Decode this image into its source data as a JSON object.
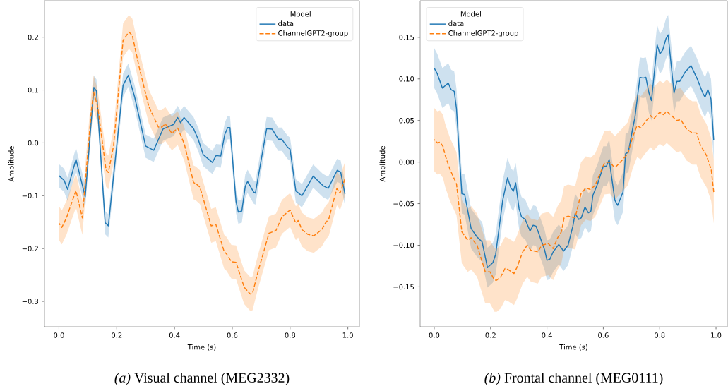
{
  "chart_data": [
    {
      "type": "line",
      "xlabel": "Time (s)",
      "ylabel": "Amplitude",
      "legend_title": "Model",
      "legend": "top right",
      "annotations": [
        "*(a)* Visual channel (MEG2332)"
      ],
      "xlim": [
        -0.05,
        1.04
      ],
      "ylim": [
        -0.348,
        0.269
      ],
      "xticks": [
        {
          "value": 0,
          "label": "0.0"
        },
        {
          "value": 0.2,
          "label": "0.2"
        },
        {
          "value": 0.4,
          "label": "0.4"
        },
        {
          "value": 0.6,
          "label": "0.6"
        },
        {
          "value": 0.8,
          "label": "0.8"
        },
        {
          "value": 1,
          "label": "1.0"
        }
      ],
      "yticks": [
        {
          "value": -0.3,
          "label": "−0.3"
        },
        {
          "value": -0.2,
          "label": "−0.2"
        },
        {
          "value": -0.1,
          "label": "−0.1"
        },
        {
          "value": 0,
          "label": "0.0"
        },
        {
          "value": 0.1,
          "label": "0.1"
        },
        {
          "value": 0.2,
          "label": "0.2"
        }
      ],
      "series": [
        {
          "name": "data",
          "color": "#1f77b4",
          "line_style": "solid",
          "x": [
            0,
            0.018,
            0.03,
            0.059,
            0.091,
            0.121,
            0.13,
            0.16,
            0.171,
            0.222,
            0.24,
            0.262,
            0.3,
            0.328,
            0.36,
            0.397,
            0.411,
            0.421,
            0.433,
            0.466,
            0.482,
            0.499,
            0.531,
            0.544,
            0.56,
            0.574,
            0.584,
            0.592,
            0.613,
            0.621,
            0.633,
            0.645,
            0.653,
            0.674,
            0.68,
            0.719,
            0.738,
            0.759,
            0.771,
            0.791,
            0.8,
            0.82,
            0.841,
            0.88,
            0.914,
            0.932,
            0.963,
            0.975,
            0.99
          ],
          "values": [
            -0.062,
            -0.071,
            -0.088,
            -0.031,
            -0.102,
            0.105,
            0.098,
            -0.151,
            -0.157,
            0.109,
            0.128,
            0.087,
            -0.006,
            -0.014,
            0.026,
            0.035,
            0.048,
            0.038,
            0.048,
            0.027,
            0.007,
            -0.022,
            -0.037,
            -0.024,
            -0.025,
            0.016,
            0.029,
            0.029,
            -0.111,
            -0.131,
            -0.129,
            -0.082,
            -0.073,
            -0.093,
            -0.095,
            0.027,
            0.026,
            0.007,
            0.007,
            -0.008,
            -0.012,
            -0.091,
            -0.1,
            -0.063,
            -0.081,
            -0.086,
            -0.052,
            -0.055,
            -0.097
          ],
          "lower": [
            -0.084,
            -0.093,
            -0.11,
            -0.053,
            -0.124,
            0.083,
            0.076,
            -0.173,
            -0.179,
            0.087,
            0.106,
            0.065,
            -0.028,
            -0.036,
            0.004,
            0.013,
            0.026,
            0.016,
            0.026,
            0.005,
            -0.015,
            -0.044,
            -0.059,
            -0.046,
            -0.047,
            -0.006,
            0.007,
            0.007,
            -0.133,
            -0.153,
            -0.151,
            -0.104,
            -0.095,
            -0.115,
            -0.117,
            0.005,
            0.004,
            -0.015,
            -0.015,
            -0.03,
            -0.034,
            -0.113,
            -0.122,
            -0.085,
            -0.103,
            -0.108,
            -0.074,
            -0.077,
            -0.119
          ],
          "upper": [
            -0.04,
            -0.049,
            -0.066,
            -0.009,
            -0.08,
            0.127,
            0.12,
            -0.129,
            -0.135,
            0.131,
            0.15,
            0.109,
            0.016,
            0.008,
            0.048,
            0.057,
            0.07,
            0.06,
            0.07,
            0.049,
            0.029,
            0,
            -0.015,
            -0.002,
            -0.003,
            0.038,
            0.051,
            0.051,
            -0.089,
            -0.109,
            -0.107,
            -0.06,
            -0.051,
            -0.071,
            -0.073,
            0.049,
            0.048,
            0.029,
            0.029,
            0.014,
            0.01,
            -0.069,
            -0.078,
            -0.041,
            -0.059,
            -0.064,
            -0.03,
            -0.033,
            -0.075
          ]
        },
        {
          "name": "ChannelGPT2-group",
          "color": "#ff7f0e",
          "line_style": "dashed",
          "x": [
            0,
            0.01,
            0.026,
            0.059,
            0.081,
            0.112,
            0.12,
            0.134,
            0.163,
            0.171,
            0.189,
            0.222,
            0.242,
            0.254,
            0.279,
            0.311,
            0.344,
            0.356,
            0.368,
            0.391,
            0.411,
            0.434,
            0.466,
            0.474,
            0.488,
            0.527,
            0.543,
            0.572,
            0.58,
            0.597,
            0.613,
            0.641,
            0.662,
            0.67,
            0.69,
            0.727,
            0.751,
            0.772,
            0.8,
            0.82,
            0.828,
            0.841,
            0.861,
            0.882,
            0.91,
            0.922,
            0.934,
            0.962,
            0.973,
            0.99
          ],
          "values": [
            -0.152,
            -0.16,
            -0.142,
            -0.09,
            -0.142,
            0.06,
            0.096,
            0.069,
            -0.051,
            -0.056,
            -0.006,
            0.194,
            0.21,
            0.203,
            0.14,
            0.069,
            0.03,
            0.03,
            0.036,
            0.018,
            0.028,
            -0.002,
            -0.075,
            -0.077,
            -0.084,
            -0.157,
            -0.154,
            -0.206,
            -0.21,
            -0.225,
            -0.226,
            -0.273,
            -0.286,
            -0.285,
            -0.242,
            -0.171,
            -0.166,
            -0.14,
            -0.127,
            -0.152,
            -0.147,
            -0.164,
            -0.173,
            -0.176,
            -0.164,
            -0.152,
            -0.144,
            -0.086,
            -0.095,
            -0.068
          ],
          "lower": [
            -0.184,
            -0.192,
            -0.174,
            -0.122,
            -0.174,
            0.028,
            0.064,
            0.037,
            -0.083,
            -0.088,
            -0.038,
            0.162,
            0.178,
            0.171,
            0.108,
            0.037,
            -0.002,
            -0.002,
            0.004,
            -0.014,
            -0.004,
            -0.034,
            -0.107,
            -0.109,
            -0.116,
            -0.189,
            -0.186,
            -0.238,
            -0.242,
            -0.257,
            -0.258,
            -0.305,
            -0.318,
            -0.317,
            -0.274,
            -0.203,
            -0.198,
            -0.172,
            -0.159,
            -0.184,
            -0.179,
            -0.196,
            -0.205,
            -0.208,
            -0.196,
            -0.184,
            -0.176,
            -0.118,
            -0.127,
            -0.1
          ],
          "upper": [
            -0.12,
            -0.128,
            -0.11,
            -0.058,
            -0.11,
            0.092,
            0.128,
            0.101,
            -0.019,
            -0.024,
            0.026,
            0.226,
            0.242,
            0.235,
            0.172,
            0.101,
            0.062,
            0.062,
            0.068,
            0.05,
            0.06,
            0.03,
            -0.043,
            -0.045,
            -0.052,
            -0.125,
            -0.122,
            -0.174,
            -0.178,
            -0.193,
            -0.194,
            -0.241,
            -0.254,
            -0.253,
            -0.21,
            -0.139,
            -0.134,
            -0.108,
            -0.095,
            -0.12,
            -0.115,
            -0.132,
            -0.141,
            -0.144,
            -0.132,
            -0.12,
            -0.112,
            -0.054,
            -0.063,
            -0.036
          ]
        }
      ]
    },
    {
      "type": "line",
      "xlabel": "Time (s)",
      "ylabel": "Amplitude",
      "legend_title": "Model",
      "legend": "top left",
      "annotations": [
        "*(b)* Frontal channel (MEG0111)"
      ],
      "xlim": [
        -0.05,
        1.04
      ],
      "ylim": [
        -0.198,
        0.194
      ],
      "xticks": [
        {
          "value": 0,
          "label": "0.0"
        },
        {
          "value": 0.2,
          "label": "0.2"
        },
        {
          "value": 0.4,
          "label": "0.4"
        },
        {
          "value": 0.6,
          "label": "0.6"
        },
        {
          "value": 0.8,
          "label": "0.8"
        },
        {
          "value": 1,
          "label": "1.0"
        }
      ],
      "yticks": [
        {
          "value": -0.15,
          "label": "−0.15"
        },
        {
          "value": -0.1,
          "label": "−0.10"
        },
        {
          "value": -0.05,
          "label": "−0.05"
        },
        {
          "value": 0,
          "label": "0.00"
        },
        {
          "value": 0.05,
          "label": "0.05"
        },
        {
          "value": 0.1,
          "label": "0.10"
        },
        {
          "value": 0.15,
          "label": "0.15"
        }
      ],
      "series": [
        {
          "name": "data",
          "color": "#1f77b4",
          "line_style": "solid",
          "x": [
            0,
            0.011,
            0.029,
            0.05,
            0.06,
            0.071,
            0.079,
            0.098,
            0.108,
            0.131,
            0.152,
            0.17,
            0.189,
            0.208,
            0.218,
            0.243,
            0.26,
            0.272,
            0.281,
            0.289,
            0.301,
            0.31,
            0.323,
            0.34,
            0.351,
            0.361,
            0.368,
            0.392,
            0.4,
            0.41,
            0.422,
            0.442,
            0.459,
            0.475,
            0.492,
            0.5,
            0.513,
            0.522,
            0.535,
            0.547,
            0.556,
            0.563,
            0.58,
            0.6,
            0.611,
            0.621,
            0.641,
            0.651,
            0.67,
            0.679,
            0.689,
            0.704,
            0.712,
            0.73,
            0.741,
            0.751,
            0.762,
            0.771,
            0.791,
            0.801,
            0.811,
            0.822,
            0.83,
            0.851,
            0.861,
            0.871,
            0.89,
            0.911,
            0.932,
            0.953,
            0.961,
            0.971,
            0.982,
            0.992
          ],
          "values": [
            0.113,
            0.106,
            0.089,
            0.095,
            0.087,
            0.085,
            0.064,
            -0.038,
            -0.039,
            -0.08,
            -0.09,
            -0.096,
            -0.127,
            -0.121,
            -0.111,
            -0.046,
            -0.019,
            -0.031,
            -0.035,
            -0.025,
            -0.056,
            -0.066,
            -0.069,
            -0.083,
            -0.076,
            -0.077,
            -0.083,
            -0.106,
            -0.118,
            -0.117,
            -0.108,
            -0.099,
            -0.107,
            -0.1,
            -0.077,
            -0.062,
            -0.069,
            -0.067,
            -0.054,
            -0.061,
            -0.059,
            -0.04,
            -0.026,
            -0.005,
            -0.005,
            0.003,
            -0.046,
            -0.052,
            -0.036,
            0.01,
            0.012,
            0.04,
            0.053,
            0.102,
            0.101,
            0.102,
            0.083,
            0.074,
            0.141,
            0.13,
            0.135,
            0.148,
            0.153,
            0.083,
            0.097,
            0.097,
            0.108,
            0.116,
            0.101,
            0.083,
            0.078,
            0.087,
            0.076,
            0.026
          ],
          "lower": [
            0.089,
            0.082,
            0.065,
            0.071,
            0.063,
            0.061,
            0.04,
            -0.062,
            -0.063,
            -0.104,
            -0.114,
            -0.12,
            -0.151,
            -0.145,
            -0.135,
            -0.07,
            -0.043,
            -0.055,
            -0.059,
            -0.049,
            -0.08,
            -0.09,
            -0.093,
            -0.107,
            -0.1,
            -0.101,
            -0.107,
            -0.13,
            -0.142,
            -0.141,
            -0.132,
            -0.123,
            -0.131,
            -0.124,
            -0.101,
            -0.086,
            -0.093,
            -0.091,
            -0.078,
            -0.085,
            -0.083,
            -0.064,
            -0.05,
            -0.029,
            -0.029,
            -0.021,
            -0.07,
            -0.076,
            -0.06,
            -0.014,
            -0.012,
            0.016,
            0.029,
            0.078,
            0.077,
            0.078,
            0.059,
            0.05,
            0.117,
            0.106,
            0.111,
            0.124,
            0.129,
            0.059,
            0.073,
            0.073,
            0.084,
            0.092,
            0.077,
            0.059,
            0.054,
            0.063,
            0.052,
            0.002
          ],
          "upper": [
            0.137,
            0.13,
            0.113,
            0.119,
            0.111,
            0.109,
            0.088,
            -0.014,
            -0.015,
            -0.056,
            -0.066,
            -0.072,
            -0.103,
            -0.097,
            -0.087,
            -0.022,
            0.005,
            -0.007,
            -0.011,
            -0.001,
            -0.032,
            -0.042,
            -0.045,
            -0.059,
            -0.052,
            -0.053,
            -0.059,
            -0.082,
            -0.094,
            -0.093,
            -0.084,
            -0.075,
            -0.083,
            -0.076,
            -0.053,
            -0.038,
            -0.045,
            -0.043,
            -0.03,
            -0.037,
            -0.035,
            -0.016,
            -0.002,
            0.019,
            0.019,
            0.027,
            -0.022,
            -0.028,
            -0.012,
            0.034,
            0.036,
            0.064,
            0.077,
            0.126,
            0.125,
            0.126,
            0.107,
            0.098,
            0.165,
            0.154,
            0.159,
            0.172,
            0.177,
            0.107,
            0.121,
            0.121,
            0.132,
            0.14,
            0.125,
            0.107,
            0.102,
            0.111,
            0.1,
            0.05
          ]
        },
        {
          "name": "ChannelGPT2-group",
          "color": "#ff7f0e",
          "line_style": "dashed",
          "x": [
            0,
            0.011,
            0.02,
            0.031,
            0.039,
            0.056,
            0.079,
            0.098,
            0.119,
            0.131,
            0.152,
            0.173,
            0.181,
            0.198,
            0.214,
            0.222,
            0.236,
            0.251,
            0.261,
            0.283,
            0.293,
            0.314,
            0.33,
            0.343,
            0.368,
            0.381,
            0.405,
            0.422,
            0.438,
            0.451,
            0.461,
            0.475,
            0.5,
            0.521,
            0.538,
            0.554,
            0.571,
            0.583,
            0.604,
            0.623,
            0.641,
            0.666,
            0.687,
            0.704,
            0.72,
            0.733,
            0.746,
            0.767,
            0.779,
            0.8,
            0.813,
            0.825,
            0.842,
            0.86,
            0.875,
            0.895,
            0.916,
            0.931,
            0.945,
            0.966,
            0.983,
            0.992
          ],
          "values": [
            0.027,
            0.023,
            0.024,
            0.019,
            0.008,
            -0.009,
            -0.026,
            -0.084,
            -0.094,
            -0.091,
            -0.1,
            -0.123,
            -0.132,
            -0.132,
            -0.142,
            -0.142,
            -0.138,
            -0.128,
            -0.129,
            -0.134,
            -0.127,
            -0.108,
            -0.1,
            -0.106,
            -0.108,
            -0.1,
            -0.098,
            -0.104,
            -0.091,
            -0.084,
            -0.067,
            -0.065,
            -0.067,
            -0.038,
            -0.031,
            -0.033,
            -0.028,
            -0.018,
            -0.001,
            0,
            -0.007,
            0.002,
            0.01,
            0.03,
            0.044,
            0.041,
            0.047,
            0.056,
            0.052,
            0.06,
            0.057,
            0.061,
            0.056,
            0.05,
            0.051,
            0.04,
            0.035,
            0.035,
            0.02,
            0.008,
            -0.009,
            -0.036
          ],
          "lower": [
            -0.011,
            -0.015,
            -0.014,
            -0.019,
            -0.03,
            -0.047,
            -0.064,
            -0.122,
            -0.132,
            -0.129,
            -0.138,
            -0.161,
            -0.17,
            -0.17,
            -0.18,
            -0.18,
            -0.176,
            -0.166,
            -0.167,
            -0.172,
            -0.165,
            -0.146,
            -0.138,
            -0.144,
            -0.146,
            -0.138,
            -0.136,
            -0.142,
            -0.129,
            -0.122,
            -0.105,
            -0.103,
            -0.105,
            -0.076,
            -0.069,
            -0.071,
            -0.066,
            -0.056,
            -0.039,
            -0.038,
            -0.045,
            -0.036,
            -0.028,
            -0.008,
            0.006,
            0.003,
            0.009,
            0.018,
            0.014,
            0.022,
            0.019,
            0.023,
            0.018,
            0.012,
            0.013,
            0.002,
            -0.003,
            -0.003,
            -0.018,
            -0.03,
            -0.047,
            -0.074
          ],
          "upper": [
            0.065,
            0.061,
            0.062,
            0.057,
            0.046,
            0.029,
            0.012,
            -0.046,
            -0.056,
            -0.053,
            -0.062,
            -0.085,
            -0.094,
            -0.094,
            -0.104,
            -0.104,
            -0.1,
            -0.09,
            -0.091,
            -0.096,
            -0.089,
            -0.07,
            -0.062,
            -0.068,
            -0.07,
            -0.062,
            -0.06,
            -0.066,
            -0.053,
            -0.046,
            -0.029,
            -0.027,
            -0.029,
            0,
            0.007,
            0.005,
            0.01,
            0.02,
            0.037,
            0.038,
            0.031,
            0.04,
            0.048,
            0.068,
            0.082,
            0.079,
            0.085,
            0.094,
            0.09,
            0.098,
            0.095,
            0.099,
            0.094,
            0.088,
            0.089,
            0.078,
            0.073,
            0.073,
            0.058,
            0.046,
            0.029,
            0.002
          ]
        }
      ]
    }
  ]
}
